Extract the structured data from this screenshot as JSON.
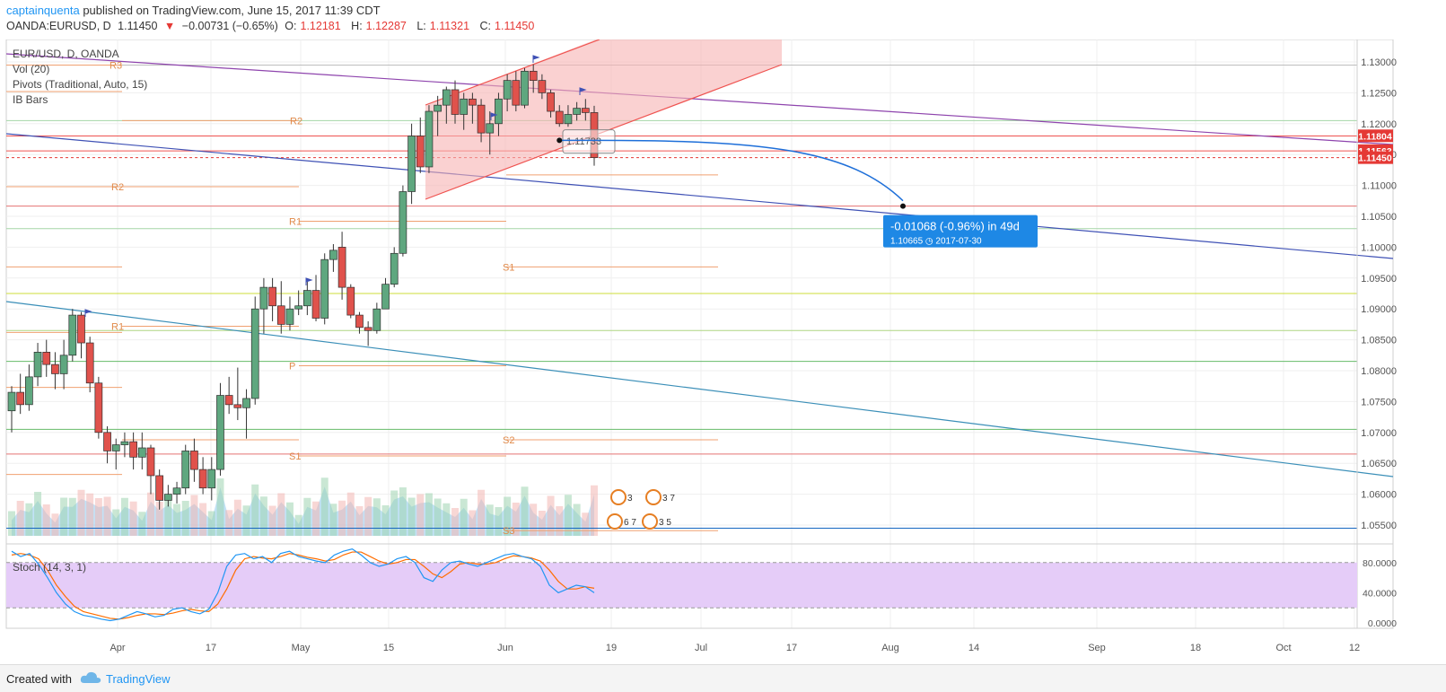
{
  "header": {
    "author": "captainquenta",
    "published_text": "published on TradingView.com, June 15, 2017 11:39 CDT",
    "symbol": "OANDA:EURUSD, D",
    "last": "1.11450",
    "change": "−0.00731 (−0.65%)",
    "open_label": "O:",
    "open": "1.12181",
    "high_label": "H:",
    "high": "1.12287",
    "low_label": "L:",
    "low": "1.11321",
    "close_label": "C:",
    "close": "1.11450"
  },
  "studies": {
    "main": "EUR/USD, D, OANDA",
    "volume": "Vol (20)",
    "pivots": "Pivots (Traditional, Auto, 15)",
    "ib": "IB Bars",
    "stoch": "Stoch (14, 3, 1)"
  },
  "footer": {
    "created": "Created with",
    "brand": "TradingView"
  },
  "colors": {
    "up": "#5fa77f",
    "down": "#e0524c",
    "accent": "#2196f3",
    "stoch_fill": "#e5ccf8"
  },
  "chart_data": {
    "type": "candlestick",
    "title": "EUR/USD, D, OANDA",
    "x_ticks": [
      "Apr",
      "17",
      "May",
      "15",
      "Jun",
      "19",
      "Jul",
      "17",
      "Aug",
      "14",
      "Sep",
      "18",
      "Oct",
      "12"
    ],
    "y_ticks": [
      "1.13000",
      "1.12500",
      "1.12000",
      "1.11500",
      "1.11000",
      "1.10500",
      "1.10000",
      "1.09500",
      "1.09000",
      "1.08500",
      "1.08000",
      "1.07500",
      "1.07000",
      "1.06500",
      "1.06000",
      "1.05500"
    ],
    "ylim": [
      1.0525,
      1.1345
    ],
    "price_labels": [
      {
        "value": "1.11804",
        "color": "#e53935"
      },
      {
        "value": "1.11563",
        "color": "#e53935"
      },
      {
        "value": "1.11450",
        "color": "#e53935"
      }
    ],
    "candles": [
      {
        "date": "2017-03-22",
        "o": 1.0735,
        "h": 1.0775,
        "l": 1.07,
        "c": 1.0765
      },
      {
        "date": "2017-03-23",
        "o": 1.0765,
        "h": 1.0795,
        "l": 1.073,
        "c": 1.0745
      },
      {
        "date": "2017-03-24",
        "o": 1.0745,
        "h": 1.081,
        "l": 1.0735,
        "c": 1.079
      },
      {
        "date": "2017-03-27",
        "o": 1.079,
        "h": 1.0845,
        "l": 1.0775,
        "c": 1.083
      },
      {
        "date": "2017-03-28",
        "o": 1.083,
        "h": 1.085,
        "l": 1.079,
        "c": 1.081
      },
      {
        "date": "2017-03-29",
        "o": 1.081,
        "h": 1.083,
        "l": 1.077,
        "c": 1.0795
      },
      {
        "date": "2017-03-30",
        "o": 1.0795,
        "h": 1.085,
        "l": 1.077,
        "c": 1.0825
      },
      {
        "date": "2017-03-31",
        "o": 1.0825,
        "h": 1.09,
        "l": 1.0815,
        "c": 1.089
      },
      {
        "date": "2017-04-03",
        "o": 1.089,
        "h": 1.0895,
        "l": 1.082,
        "c": 1.0845
      },
      {
        "date": "2017-04-04",
        "o": 1.0845,
        "h": 1.0855,
        "l": 1.0765,
        "c": 1.078
      },
      {
        "date": "2017-04-05",
        "o": 1.078,
        "h": 1.079,
        "l": 1.069,
        "c": 1.07
      },
      {
        "date": "2017-04-06",
        "o": 1.07,
        "h": 1.071,
        "l": 1.065,
        "c": 1.067
      },
      {
        "date": "2017-04-07",
        "o": 1.067,
        "h": 1.069,
        "l": 1.064,
        "c": 1.068
      },
      {
        "date": "2017-04-10",
        "o": 1.068,
        "h": 1.07,
        "l": 1.066,
        "c": 1.0685
      },
      {
        "date": "2017-04-11",
        "o": 1.0685,
        "h": 1.07,
        "l": 1.064,
        "c": 1.066
      },
      {
        "date": "2017-04-12",
        "o": 1.066,
        "h": 1.07,
        "l": 1.064,
        "c": 1.0675
      },
      {
        "date": "2017-04-13",
        "o": 1.0675,
        "h": 1.068,
        "l": 1.06,
        "c": 1.063
      },
      {
        "date": "2017-04-14",
        "o": 1.063,
        "h": 1.064,
        "l": 1.0575,
        "c": 1.059
      },
      {
        "date": "2017-04-17",
        "o": 1.059,
        "h": 1.0615,
        "l": 1.058,
        "c": 1.06
      },
      {
        "date": "2017-04-18",
        "o": 1.06,
        "h": 1.062,
        "l": 1.0585,
        "c": 1.061
      },
      {
        "date": "2017-04-19",
        "o": 1.061,
        "h": 1.068,
        "l": 1.06,
        "c": 1.067
      },
      {
        "date": "2017-04-20",
        "o": 1.067,
        "h": 1.069,
        "l": 1.062,
        "c": 1.064
      },
      {
        "date": "2017-04-21",
        "o": 1.064,
        "h": 1.066,
        "l": 1.06,
        "c": 1.061
      },
      {
        "date": "2017-04-24",
        "o": 1.061,
        "h": 1.066,
        "l": 1.059,
        "c": 1.064
      },
      {
        "date": "2017-04-25",
        "o": 1.064,
        "h": 1.078,
        "l": 1.063,
        "c": 1.076
      },
      {
        "date": "2017-04-26",
        "o": 1.076,
        "h": 1.079,
        "l": 1.073,
        "c": 1.0745
      },
      {
        "date": "2017-04-27",
        "o": 1.0745,
        "h": 1.0805,
        "l": 1.072,
        "c": 1.074
      },
      {
        "date": "2017-04-28",
        "o": 1.074,
        "h": 1.077,
        "l": 1.069,
        "c": 1.0755
      },
      {
        "date": "2017-05-01",
        "o": 1.0755,
        "h": 1.092,
        "l": 1.0745,
        "c": 1.09
      },
      {
        "date": "2017-05-02",
        "o": 1.09,
        "h": 1.095,
        "l": 1.086,
        "c": 1.0935
      },
      {
        "date": "2017-05-03",
        "o": 1.0935,
        "h": 1.095,
        "l": 1.088,
        "c": 1.0905
      },
      {
        "date": "2017-05-04",
        "o": 1.0905,
        "h": 1.0945,
        "l": 1.086,
        "c": 1.0875
      },
      {
        "date": "2017-05-05",
        "o": 1.0875,
        "h": 1.092,
        "l": 1.0865,
        "c": 1.09
      },
      {
        "date": "2017-05-08",
        "o": 1.09,
        "h": 1.093,
        "l": 1.089,
        "c": 1.0905
      },
      {
        "date": "2017-05-09",
        "o": 1.0905,
        "h": 1.0945,
        "l": 1.089,
        "c": 1.093
      },
      {
        "date": "2017-05-10",
        "o": 1.093,
        "h": 1.0955,
        "l": 1.088,
        "c": 1.0885
      },
      {
        "date": "2017-05-11",
        "o": 1.0885,
        "h": 1.099,
        "l": 1.0875,
        "c": 1.098
      },
      {
        "date": "2017-05-12",
        "o": 1.098,
        "h": 1.1005,
        "l": 1.096,
        "c": 1.0995
      },
      {
        "date": "2017-05-15",
        "o": 1.1,
        "h": 1.1025,
        "l": 1.0915,
        "c": 1.0935
      },
      {
        "date": "2017-05-16",
        "o": 1.0935,
        "h": 1.094,
        "l": 1.0885,
        "c": 1.089
      },
      {
        "date": "2017-05-17",
        "o": 1.089,
        "h": 1.0895,
        "l": 1.086,
        "c": 1.087
      },
      {
        "date": "2017-05-18",
        "o": 1.087,
        "h": 1.088,
        "l": 1.084,
        "c": 1.0865
      },
      {
        "date": "2017-05-19",
        "o": 1.0865,
        "h": 1.091,
        "l": 1.086,
        "c": 1.09
      },
      {
        "date": "2017-05-22",
        "o": 1.09,
        "h": 1.095,
        "l": 1.09,
        "c": 1.094
      },
      {
        "date": "2017-05-23",
        "o": 1.094,
        "h": 1.1,
        "l": 1.0935,
        "c": 1.099
      },
      {
        "date": "2017-05-24",
        "o": 1.099,
        "h": 1.11,
        "l": 1.0985,
        "c": 1.109
      },
      {
        "date": "2017-05-25",
        "o": 1.109,
        "h": 1.12,
        "l": 1.107,
        "c": 1.118
      },
      {
        "date": "2017-05-26",
        "o": 1.118,
        "h": 1.121,
        "l": 1.112,
        "c": 1.113
      },
      {
        "date": "2017-05-29",
        "o": 1.113,
        "h": 1.123,
        "l": 1.112,
        "c": 1.122
      },
      {
        "date": "2017-05-30",
        "o": 1.122,
        "h": 1.1245,
        "l": 1.118,
        "c": 1.123
      },
      {
        "date": "2017-05-31",
        "o": 1.123,
        "h": 1.126,
        "l": 1.12,
        "c": 1.1255
      },
      {
        "date": "2017-06-01",
        "o": 1.1255,
        "h": 1.127,
        "l": 1.12,
        "c": 1.1215
      },
      {
        "date": "2017-06-02",
        "o": 1.1215,
        "h": 1.125,
        "l": 1.119,
        "c": 1.124
      },
      {
        "date": "2017-06-05",
        "o": 1.124,
        "h": 1.125,
        "l": 1.12,
        "c": 1.123
      },
      {
        "date": "2017-06-06",
        "o": 1.123,
        "h": 1.124,
        "l": 1.117,
        "c": 1.1185
      },
      {
        "date": "2017-06-07",
        "o": 1.1185,
        "h": 1.122,
        "l": 1.115,
        "c": 1.12
      },
      {
        "date": "2017-06-08",
        "o": 1.12,
        "h": 1.125,
        "l": 1.118,
        "c": 1.124
      },
      {
        "date": "2017-06-09",
        "o": 1.124,
        "h": 1.128,
        "l": 1.122,
        "c": 1.127
      },
      {
        "date": "2017-06-12",
        "o": 1.127,
        "h": 1.1285,
        "l": 1.122,
        "c": 1.123
      },
      {
        "date": "2017-06-13",
        "o": 1.123,
        "h": 1.129,
        "l": 1.1225,
        "c": 1.1285
      },
      {
        "date": "2017-06-14",
        "o": 1.1285,
        "h": 1.1296,
        "l": 1.125,
        "c": 1.127
      },
      {
        "date": "2017-06-15",
        "o": 1.127,
        "h": 1.128,
        "l": 1.124,
        "c": 1.125
      },
      {
        "date": "2017-06-16",
        "o": 1.125,
        "h": 1.1255,
        "l": 1.121,
        "c": 1.122
      },
      {
        "date": "2017-06-19",
        "o": 1.122,
        "h": 1.123,
        "l": 1.1195,
        "c": 1.12
      },
      {
        "date": "2017-06-20",
        "o": 1.12,
        "h": 1.123,
        "l": 1.1195,
        "c": 1.1215
      },
      {
        "date": "2017-06-21",
        "o": 1.1215,
        "h": 1.1235,
        "l": 1.1205,
        "c": 1.1225
      },
      {
        "date": "2017-06-22",
        "o": 1.1225,
        "h": 1.124,
        "l": 1.1205,
        "c": 1.1218
      },
      {
        "date": "2017-06-23",
        "o": 1.1218,
        "h": 1.1229,
        "l": 1.1132,
        "c": 1.1145
      }
    ],
    "projection": {
      "label": "-0.01068 (-0.96%) in 49d",
      "price": "1.10665",
      "date": "2017-07-30",
      "from": 1.1173,
      "to": 1.10665
    },
    "annotation_label": "1.11733",
    "pivot_labels": [
      "R3",
      "R2",
      "R2",
      "R1",
      "R1",
      "P",
      "S1",
      "S1",
      "S2",
      "S3"
    ],
    "stoch": {
      "name": "Stoch (14, 3, 1)",
      "y_ticks": [
        "80.0000",
        "40.0000",
        "0.0000"
      ],
      "ylim": [
        0,
        100
      ],
      "k": [
        95,
        88,
        92,
        78,
        60,
        40,
        25,
        15,
        10,
        8,
        5,
        3,
        5,
        10,
        15,
        12,
        8,
        10,
        18,
        20,
        15,
        12,
        18,
        40,
        75,
        90,
        92,
        85,
        88,
        80,
        92,
        95,
        88,
        85,
        82,
        80,
        90,
        95,
        98,
        90,
        80,
        75,
        78,
        85,
        88,
        80,
        60,
        55,
        70,
        80,
        82,
        78,
        75,
        80,
        85,
        90,
        92,
        88,
        85,
        75,
        50,
        40,
        45,
        50,
        48,
        40
      ],
      "d": [
        90,
        92,
        90,
        85,
        70,
        50,
        35,
        22,
        15,
        12,
        9,
        6,
        5,
        7,
        10,
        12,
        12,
        11,
        13,
        16,
        18,
        16,
        15,
        25,
        45,
        70,
        85,
        88,
        86,
        85,
        88,
        92,
        90,
        87,
        85,
        82,
        84,
        90,
        94,
        94,
        88,
        82,
        78,
        80,
        84,
        84,
        75,
        65,
        60,
        68,
        78,
        80,
        78,
        78,
        80,
        85,
        89,
        88,
        86,
        82,
        70,
        55,
        45,
        45,
        48,
        46
      ]
    }
  }
}
